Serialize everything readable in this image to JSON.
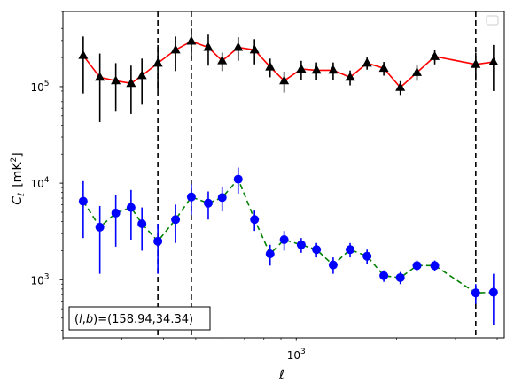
{
  "chart_data": {
    "type": "scatter",
    "x_scale": "log",
    "y_scale": "log",
    "xlim": [
      200,
      4200
    ],
    "ylim": [
      250,
      600000
    ],
    "xlabel": "ℓ",
    "ylabel_main": "C",
    "ylabel_sub": "ℓ",
    "ylabel_unit": "[mK",
    "ylabel_unit_sup": "2",
    "ylabel_unit_close": "]",
    "x_tick_labels": [
      {
        "value": 1000,
        "base": "10",
        "exp": "3"
      }
    ],
    "y_tick_labels": [
      {
        "value": 1000,
        "base": "10",
        "exp": "3"
      },
      {
        "value": 10000,
        "base": "10",
        "exp": "4"
      },
      {
        "value": 100000,
        "base": "10",
        "exp": "5"
      }
    ],
    "annotation": "(l, b)=(158.94,34.34)",
    "annotation_parts": {
      "open": "(",
      "l": "l",
      "sep": ",",
      "b": "b",
      "close": ")",
      "rest": "=(158.94,34.34)"
    },
    "vlines": [
      385,
      485,
      3450
    ],
    "legend": {
      "location": "top-right",
      "entries": []
    },
    "series": [
      {
        "marker": "triangle",
        "marker_color": "#000000",
        "line_color": "#ff0000",
        "line_style": "solid",
        "errorbar_color": "#000000",
        "points": [
          {
            "x": 230,
            "y": 210000,
            "lo": 85000,
            "hi": 330000
          },
          {
            "x": 258,
            "y": 125000,
            "lo": 43000,
            "hi": 220000
          },
          {
            "x": 288,
            "y": 115000,
            "lo": 55000,
            "hi": 175000
          },
          {
            "x": 320,
            "y": 108000,
            "lo": 52000,
            "hi": 165000
          },
          {
            "x": 345,
            "y": 130000,
            "lo": 65000,
            "hi": 195000
          },
          {
            "x": 385,
            "y": 175000,
            "lo": 90000,
            "hi": 270000
          },
          {
            "x": 435,
            "y": 240000,
            "lo": 145000,
            "hi": 330000
          },
          {
            "x": 485,
            "y": 295000,
            "lo": 190000,
            "hi": 400000
          },
          {
            "x": 545,
            "y": 255000,
            "lo": 165000,
            "hi": 345000
          },
          {
            "x": 600,
            "y": 185000,
            "lo": 145000,
            "hi": 225000
          },
          {
            "x": 670,
            "y": 255000,
            "lo": 185000,
            "hi": 325000
          },
          {
            "x": 750,
            "y": 240000,
            "lo": 170000,
            "hi": 310000
          },
          {
            "x": 835,
            "y": 160000,
            "lo": 125000,
            "hi": 195000
          },
          {
            "x": 920,
            "y": 115000,
            "lo": 87000,
            "hi": 143000
          },
          {
            "x": 1035,
            "y": 152000,
            "lo": 118000,
            "hi": 185000
          },
          {
            "x": 1150,
            "y": 148000,
            "lo": 118000,
            "hi": 178000
          },
          {
            "x": 1290,
            "y": 148000,
            "lo": 118000,
            "hi": 178000
          },
          {
            "x": 1450,
            "y": 125000,
            "lo": 103000,
            "hi": 147000
          },
          {
            "x": 1630,
            "y": 175000,
            "lo": 150000,
            "hi": 200000
          },
          {
            "x": 1830,
            "y": 155000,
            "lo": 130000,
            "hi": 180000
          },
          {
            "x": 2050,
            "y": 98000,
            "lo": 82000,
            "hi": 114000
          },
          {
            "x": 2300,
            "y": 140000,
            "lo": 115000,
            "hi": 165000
          },
          {
            "x": 2600,
            "y": 205000,
            "lo": 170000,
            "hi": 240000
          },
          {
            "x": 3450,
            "y": 170000,
            "lo": 115000,
            "hi": 225000
          },
          {
            "x": 3900,
            "y": 180000,
            "lo": 90000,
            "hi": 270000
          }
        ]
      },
      {
        "marker": "circle",
        "marker_color": "#0000ff",
        "line_color": "#008000",
        "line_style": "dashed",
        "errorbar_color": "#0000ff",
        "points": [
          {
            "x": 230,
            "y": 6500,
            "lo": 2700,
            "hi": 10500
          },
          {
            "x": 258,
            "y": 3500,
            "lo": 1150,
            "hi": 5800
          },
          {
            "x": 288,
            "y": 4900,
            "lo": 2200,
            "hi": 7600
          },
          {
            "x": 320,
            "y": 5600,
            "lo": 2600,
            "hi": 8500
          },
          {
            "x": 345,
            "y": 3800,
            "lo": 2000,
            "hi": 5600
          },
          {
            "x": 385,
            "y": 2500,
            "lo": 1150,
            "hi": 3800
          },
          {
            "x": 435,
            "y": 4200,
            "lo": 2400,
            "hi": 6000
          },
          {
            "x": 485,
            "y": 7200,
            "lo": 4700,
            "hi": 9700
          },
          {
            "x": 545,
            "y": 6200,
            "lo": 4200,
            "hi": 8200
          },
          {
            "x": 600,
            "y": 7100,
            "lo": 5100,
            "hi": 9100
          },
          {
            "x": 670,
            "y": 11000,
            "lo": 7800,
            "hi": 14500
          },
          {
            "x": 750,
            "y": 4200,
            "lo": 3200,
            "hi": 5200
          },
          {
            "x": 835,
            "y": 1850,
            "lo": 1400,
            "hi": 2300
          },
          {
            "x": 920,
            "y": 2600,
            "lo": 2000,
            "hi": 3200
          },
          {
            "x": 1035,
            "y": 2300,
            "lo": 1900,
            "hi": 2700
          },
          {
            "x": 1150,
            "y": 2050,
            "lo": 1700,
            "hi": 2400
          },
          {
            "x": 1290,
            "y": 1420,
            "lo": 1150,
            "hi": 1700
          },
          {
            "x": 1450,
            "y": 2050,
            "lo": 1700,
            "hi": 2400
          },
          {
            "x": 1630,
            "y": 1750,
            "lo": 1450,
            "hi": 2050
          },
          {
            "x": 1830,
            "y": 1100,
            "lo": 950,
            "hi": 1250
          },
          {
            "x": 2050,
            "y": 1050,
            "lo": 900,
            "hi": 1200
          },
          {
            "x": 2300,
            "y": 1400,
            "lo": 1220,
            "hi": 1580
          },
          {
            "x": 2600,
            "y": 1400,
            "lo": 1220,
            "hi": 1580
          },
          {
            "x": 3450,
            "y": 730,
            "lo": 560,
            "hi": 900
          },
          {
            "x": 3900,
            "y": 740,
            "lo": 340,
            "hi": 1150
          }
        ]
      }
    ]
  }
}
